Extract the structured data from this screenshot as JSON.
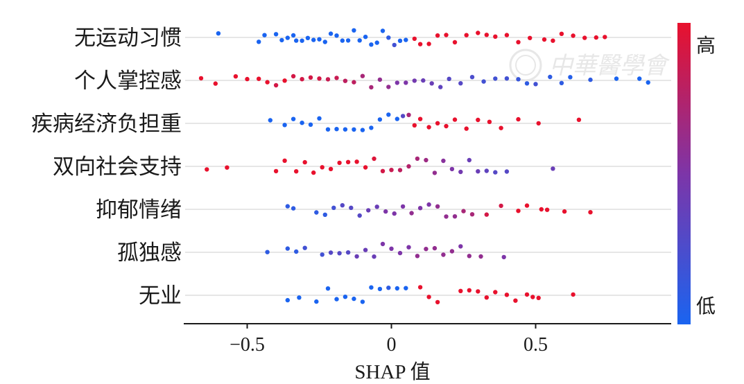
{
  "chart_data": {
    "type": "scatter",
    "subtype": "shap_beeswarm",
    "xlabel": "SHAP 值",
    "xlim": [
      -0.72,
      0.97
    ],
    "xticks": [
      -0.5,
      0,
      0.5
    ],
    "xtick_labels": [
      "−0.5",
      "0",
      "0.5"
    ],
    "colorbar": {
      "high_label": "高",
      "low_label": "低",
      "high_color": "#e8112d",
      "low_color": "#1a64f0"
    },
    "watermark": "中華醫學會",
    "grid": "horizontal rows",
    "features": [
      {
        "name": "无运动习惯",
        "points": [
          [
            -0.6,
            0
          ],
          [
            -0.46,
            0
          ],
          [
            -0.44,
            0
          ],
          [
            -0.4,
            0
          ],
          [
            -0.38,
            0
          ],
          [
            -0.36,
            0
          ],
          [
            -0.34,
            0
          ],
          [
            -0.33,
            0
          ],
          [
            -0.31,
            0
          ],
          [
            -0.29,
            0
          ],
          [
            -0.27,
            0
          ],
          [
            -0.25,
            0
          ],
          [
            -0.23,
            0
          ],
          [
            -0.21,
            0
          ],
          [
            -0.19,
            0
          ],
          [
            -0.17,
            0
          ],
          [
            -0.15,
            0
          ],
          [
            -0.13,
            0
          ],
          [
            -0.11,
            0
          ],
          [
            -0.09,
            0
          ],
          [
            -0.07,
            0
          ],
          [
            -0.05,
            0
          ],
          [
            -0.03,
            0
          ],
          [
            -0.01,
            0.1
          ],
          [
            0.01,
            0.2
          ],
          [
            0.03,
            0
          ],
          [
            0.05,
            0
          ],
          [
            0.08,
            1
          ],
          [
            0.1,
            1
          ],
          [
            0.13,
            1
          ],
          [
            0.16,
            1
          ],
          [
            0.19,
            1
          ],
          [
            0.22,
            1
          ],
          [
            0.26,
            1
          ],
          [
            0.3,
            1
          ],
          [
            0.33,
            1
          ],
          [
            0.36,
            1
          ],
          [
            0.4,
            1
          ],
          [
            0.44,
            1
          ],
          [
            0.48,
            1
          ],
          [
            0.53,
            1
          ],
          [
            0.56,
            1
          ],
          [
            0.59,
            1
          ],
          [
            0.63,
            1
          ],
          [
            0.67,
            1
          ],
          [
            0.71,
            1
          ],
          [
            0.74,
            1
          ]
        ]
      },
      {
        "name": "个人掌控感",
        "points": [
          [
            -0.66,
            1
          ],
          [
            -0.61,
            1
          ],
          [
            -0.54,
            1
          ],
          [
            -0.5,
            1
          ],
          [
            -0.46,
            1
          ],
          [
            -0.43,
            1
          ],
          [
            -0.4,
            0.9
          ],
          [
            -0.37,
            1
          ],
          [
            -0.34,
            0.9
          ],
          [
            -0.31,
            0.9
          ],
          [
            -0.28,
            0.9
          ],
          [
            -0.25,
            0.9
          ],
          [
            -0.22,
            0.85
          ],
          [
            -0.19,
            0.85
          ],
          [
            -0.16,
            0.8
          ],
          [
            -0.13,
            0.8
          ],
          [
            -0.1,
            0.7
          ],
          [
            -0.07,
            0.7
          ],
          [
            -0.04,
            0.6
          ],
          [
            -0.01,
            0.6
          ],
          [
            0.02,
            0.5
          ],
          [
            0.05,
            0.5
          ],
          [
            0.08,
            0.45
          ],
          [
            0.11,
            0.4
          ],
          [
            0.14,
            0.4
          ],
          [
            0.17,
            0.35
          ],
          [
            0.2,
            0.3
          ],
          [
            0.24,
            0.3
          ],
          [
            0.28,
            0.25
          ],
          [
            0.32,
            0.2
          ],
          [
            0.36,
            0.2
          ],
          [
            0.4,
            0.2
          ],
          [
            0.44,
            0.15
          ],
          [
            0.47,
            0.1
          ],
          [
            0.5,
            0.2
          ],
          [
            0.55,
            0.1
          ],
          [
            0.59,
            0.1
          ],
          [
            0.62,
            0.05
          ],
          [
            0.69,
            0.1
          ],
          [
            0.78,
            0
          ],
          [
            0.86,
            0
          ],
          [
            0.89,
            0
          ]
        ]
      },
      {
        "name": "疾病经济负担重",
        "points": [
          [
            -0.42,
            0
          ],
          [
            -0.37,
            0
          ],
          [
            -0.34,
            0
          ],
          [
            -0.31,
            0
          ],
          [
            -0.28,
            0
          ],
          [
            -0.25,
            0
          ],
          [
            -0.22,
            0
          ],
          [
            -0.19,
            0
          ],
          [
            -0.16,
            0
          ],
          [
            -0.13,
            0
          ],
          [
            -0.1,
            0
          ],
          [
            -0.07,
            0
          ],
          [
            -0.04,
            0
          ],
          [
            -0.01,
            0
          ],
          [
            0.02,
            0
          ],
          [
            0.04,
            0.3
          ],
          [
            0.06,
            0.7
          ],
          [
            0.08,
            1
          ],
          [
            0.1,
            1
          ],
          [
            0.13,
            1
          ],
          [
            0.16,
            1
          ],
          [
            0.19,
            1
          ],
          [
            0.22,
            1
          ],
          [
            0.26,
            1
          ],
          [
            0.3,
            1
          ],
          [
            0.34,
            1
          ],
          [
            0.38,
            1
          ],
          [
            0.44,
            1
          ],
          [
            0.51,
            1
          ],
          [
            0.65,
            1
          ]
        ]
      },
      {
        "name": "双向社会支持",
        "points": [
          [
            -0.64,
            1
          ],
          [
            -0.57,
            1
          ],
          [
            -0.4,
            1
          ],
          [
            -0.37,
            1
          ],
          [
            -0.33,
            1
          ],
          [
            -0.3,
            1
          ],
          [
            -0.27,
            1
          ],
          [
            -0.24,
            1
          ],
          [
            -0.21,
            1
          ],
          [
            -0.18,
            1
          ],
          [
            -0.15,
            1
          ],
          [
            -0.12,
            1
          ],
          [
            -0.09,
            1
          ],
          [
            -0.06,
            0.95
          ],
          [
            -0.03,
            0.9
          ],
          [
            0.0,
            0.85
          ],
          [
            0.03,
            0.8
          ],
          [
            0.06,
            0.75
          ],
          [
            0.09,
            0.7
          ],
          [
            0.12,
            0.65
          ],
          [
            0.15,
            0.6
          ],
          [
            0.18,
            0.55
          ],
          [
            0.21,
            0.5
          ],
          [
            0.24,
            0.45
          ],
          [
            0.27,
            0.4
          ],
          [
            0.3,
            0.4
          ],
          [
            0.33,
            0.35
          ],
          [
            0.36,
            0.3
          ],
          [
            0.4,
            0.3
          ],
          [
            0.56,
            0.4
          ]
        ]
      },
      {
        "name": "抑郁情绪",
        "points": [
          [
            -0.34,
            0.1
          ],
          [
            -0.36,
            0.1
          ],
          [
            -0.26,
            0.1
          ],
          [
            -0.23,
            0.1
          ],
          [
            -0.2,
            0.2
          ],
          [
            -0.17,
            0.3
          ],
          [
            -0.14,
            0.3
          ],
          [
            -0.11,
            0.3
          ],
          [
            -0.08,
            0.4
          ],
          [
            -0.05,
            0.4
          ],
          [
            -0.02,
            0.5
          ],
          [
            0.01,
            0.5
          ],
          [
            0.04,
            0.5
          ],
          [
            0.07,
            0.6
          ],
          [
            0.1,
            0.5
          ],
          [
            0.13,
            0.5
          ],
          [
            0.16,
            0.6
          ],
          [
            0.19,
            0.6
          ],
          [
            0.22,
            0.6
          ],
          [
            0.25,
            0.7
          ],
          [
            0.28,
            0.7
          ],
          [
            0.33,
            0.9
          ],
          [
            0.38,
            0.9
          ],
          [
            0.44,
            1
          ],
          [
            0.47,
            1
          ],
          [
            0.52,
            1
          ],
          [
            0.54,
            1
          ],
          [
            0.6,
            1
          ],
          [
            0.69,
            1
          ]
        ]
      },
      {
        "name": "孤独感",
        "points": [
          [
            -0.43,
            0.1
          ],
          [
            -0.36,
            0.1
          ],
          [
            -0.33,
            0.1
          ],
          [
            -0.3,
            0.2
          ],
          [
            -0.24,
            0.2
          ],
          [
            -0.21,
            0.3
          ],
          [
            -0.18,
            0.3
          ],
          [
            -0.15,
            0.3
          ],
          [
            -0.12,
            0.4
          ],
          [
            -0.09,
            0.4
          ],
          [
            -0.06,
            0.4
          ],
          [
            -0.03,
            0.5
          ],
          [
            0.0,
            0.5
          ],
          [
            0.03,
            0.5
          ],
          [
            0.06,
            0.5
          ],
          [
            0.09,
            0.6
          ],
          [
            0.12,
            0.6
          ],
          [
            0.15,
            0.6
          ],
          [
            0.18,
            0.6
          ],
          [
            0.21,
            0.6
          ],
          [
            0.24,
            0.5
          ],
          [
            0.27,
            0.6
          ],
          [
            0.31,
            0.6
          ],
          [
            0.39,
            0.5
          ]
        ]
      },
      {
        "name": "无业",
        "points": [
          [
            -0.36,
            0
          ],
          [
            -0.32,
            0
          ],
          [
            -0.26,
            0
          ],
          [
            -0.22,
            0
          ],
          [
            -0.19,
            0
          ],
          [
            -0.16,
            0
          ],
          [
            -0.13,
            0
          ],
          [
            -0.1,
            0
          ],
          [
            -0.07,
            0
          ],
          [
            -0.04,
            0
          ],
          [
            -0.01,
            0.1
          ],
          [
            0.02,
            0
          ],
          [
            0.05,
            0
          ],
          [
            0.1,
            1
          ],
          [
            0.13,
            1
          ],
          [
            0.16,
            1
          ],
          [
            0.24,
            1
          ],
          [
            0.27,
            1
          ],
          [
            0.3,
            1
          ],
          [
            0.33,
            1
          ],
          [
            0.36,
            1
          ],
          [
            0.4,
            1
          ],
          [
            0.43,
            1
          ],
          [
            0.47,
            1
          ],
          [
            0.49,
            1
          ],
          [
            0.51,
            1
          ],
          [
            0.63,
            1
          ]
        ]
      }
    ]
  }
}
